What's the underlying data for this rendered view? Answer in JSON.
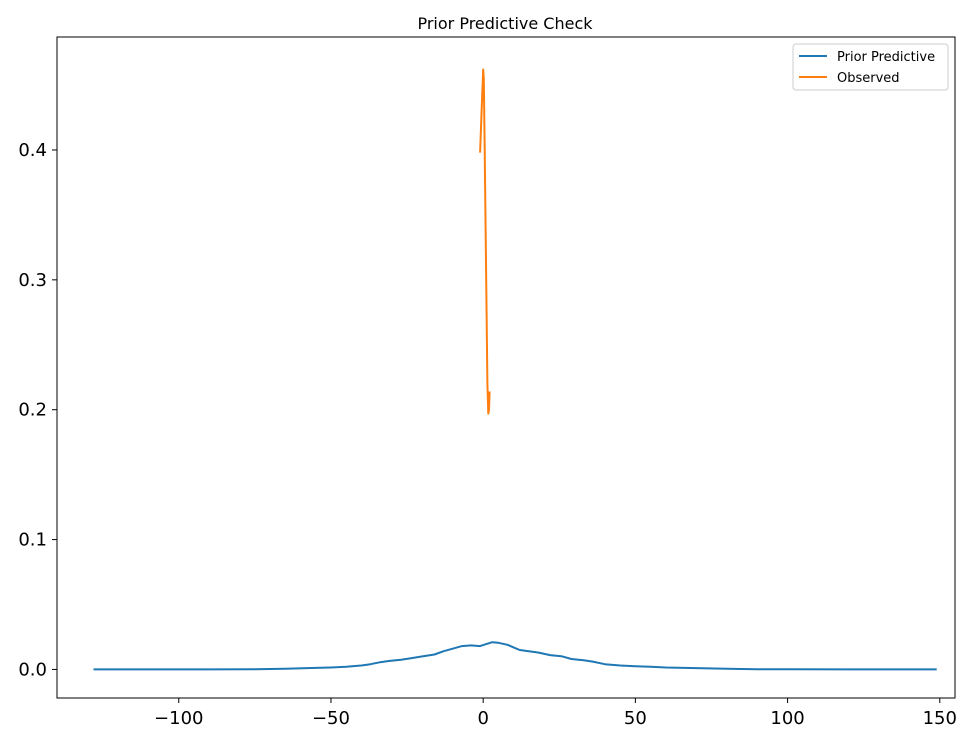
{
  "chart_data": {
    "type": "line",
    "title": "Prior Predictive Check",
    "xlabel": "",
    "ylabel": "",
    "xlim": [
      -140,
      155
    ],
    "ylim": [
      -0.022,
      0.487
    ],
    "xticks": [
      -100,
      -50,
      0,
      50,
      100,
      150
    ],
    "xtick_labels": [
      "−100",
      "−50",
      "0",
      "50",
      "100",
      "150"
    ],
    "yticks": [
      0.0,
      0.1,
      0.2,
      0.3,
      0.4
    ],
    "ytick_labels": [
      "0.0",
      "0.1",
      "0.2",
      "0.3",
      "0.4"
    ],
    "grid": false,
    "legend": {
      "position": "top-right"
    },
    "series": [
      {
        "name": "Prior Predictive",
        "color": "#1f77b4",
        "x": [
          -128,
          -110,
          -90,
          -75,
          -65,
          -58,
          -50,
          -45,
          -40,
          -37,
          -34,
          -31,
          -27,
          -24,
          -20,
          -16,
          -13,
          -10,
          -7,
          -4,
          -1,
          1,
          3,
          5,
          8,
          10,
          12,
          15,
          18,
          22,
          26,
          29,
          33,
          36,
          40,
          45,
          50,
          55,
          60,
          70,
          80,
          90,
          100,
          120,
          149
        ],
        "y": [
          0.0,
          0.0,
          0.0,
          0.0002,
          0.0005,
          0.001,
          0.0015,
          0.002,
          0.003,
          0.004,
          0.0055,
          0.0065,
          0.0075,
          0.0085,
          0.01,
          0.0115,
          0.014,
          0.016,
          0.018,
          0.0185,
          0.018,
          0.0195,
          0.021,
          0.0205,
          0.019,
          0.017,
          0.015,
          0.014,
          0.013,
          0.011,
          0.01,
          0.008,
          0.007,
          0.006,
          0.004,
          0.003,
          0.0025,
          0.002,
          0.0015,
          0.001,
          0.0005,
          0.0002,
          0.0001,
          0.0,
          0.0
        ]
      },
      {
        "name": "Observed",
        "color": "#ff7f0e",
        "x": [
          -1.0,
          -0.5,
          0.0,
          0.2,
          0.5,
          1.0,
          1.4,
          1.7,
          1.9,
          2.1
        ],
        "y": [
          0.398,
          0.43,
          0.462,
          0.455,
          0.4,
          0.3,
          0.22,
          0.197,
          0.2,
          0.214
        ]
      }
    ]
  }
}
